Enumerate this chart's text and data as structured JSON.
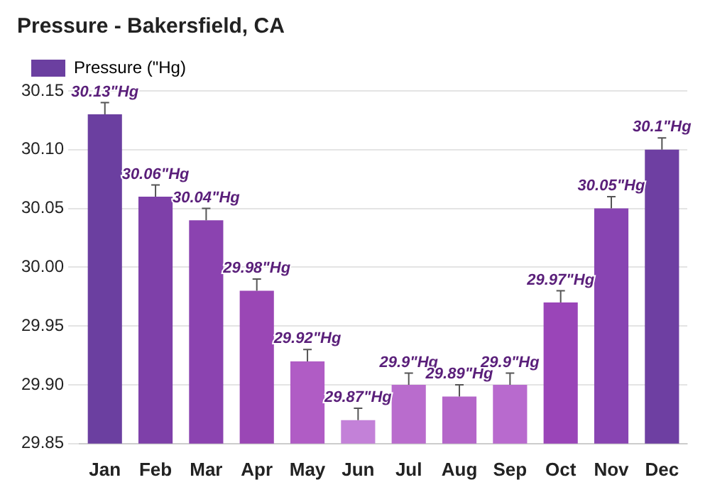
{
  "chart_data": {
    "type": "bar",
    "title": "Pressure - Bakersfield, CA",
    "categories": [
      "Jan",
      "Feb",
      "Mar",
      "Apr",
      "May",
      "Jun",
      "Jul",
      "Aug",
      "Sep",
      "Oct",
      "Nov",
      "Dec"
    ],
    "series": [
      {
        "name": "Pressure (\"Hg)",
        "color": "#6b3fa0",
        "values": [
          30.13,
          30.06,
          30.04,
          29.98,
          29.92,
          29.87,
          29.9,
          29.89,
          29.9,
          29.97,
          30.05,
          30.1
        ],
        "colors": [
          "#6b3fa0",
          "#7e40a9",
          "#8b43b0",
          "#9a47b5",
          "#b05cc5",
          "#c381d8",
          "#b96ccd",
          "#b466c9",
          "#b86ace",
          "#9a45b8",
          "#8844b2",
          "#6e3fa2"
        ],
        "errors": [
          [
            30.13,
            30.14
          ],
          [
            30.06,
            30.07
          ],
          [
            30.04,
            30.05
          ],
          [
            29.98,
            29.99
          ],
          [
            29.92,
            29.93
          ],
          [
            29.87,
            29.88
          ],
          [
            29.9,
            29.91
          ],
          [
            29.89,
            29.9
          ],
          [
            29.9,
            29.91
          ],
          [
            29.97,
            29.98
          ],
          [
            30.05,
            30.06
          ],
          [
            30.1,
            30.11
          ]
        ],
        "value_labels": [
          "30.13\"Hg",
          "30.06\"Hg",
          "30.04\"Hg",
          "29.98\"Hg",
          "29.92\"Hg",
          "29.87\"Hg",
          "29.9\"Hg",
          "29.89\"Hg",
          "29.9\"Hg",
          "29.97\"Hg",
          "30.05\"Hg",
          "30.1\"Hg"
        ]
      }
    ],
    "ylim": [
      29.85,
      30.15
    ],
    "yticks": [
      29.85,
      {
        "value": 29.9,
        "label": "29.90"
      },
      29.95,
      {
        "value": 30.0,
        "label": "30.00"
      },
      30.05,
      {
        "value": 30.1,
        "label": "30.10"
      },
      30.15
    ],
    "grid": "y",
    "legend": "top left"
  }
}
